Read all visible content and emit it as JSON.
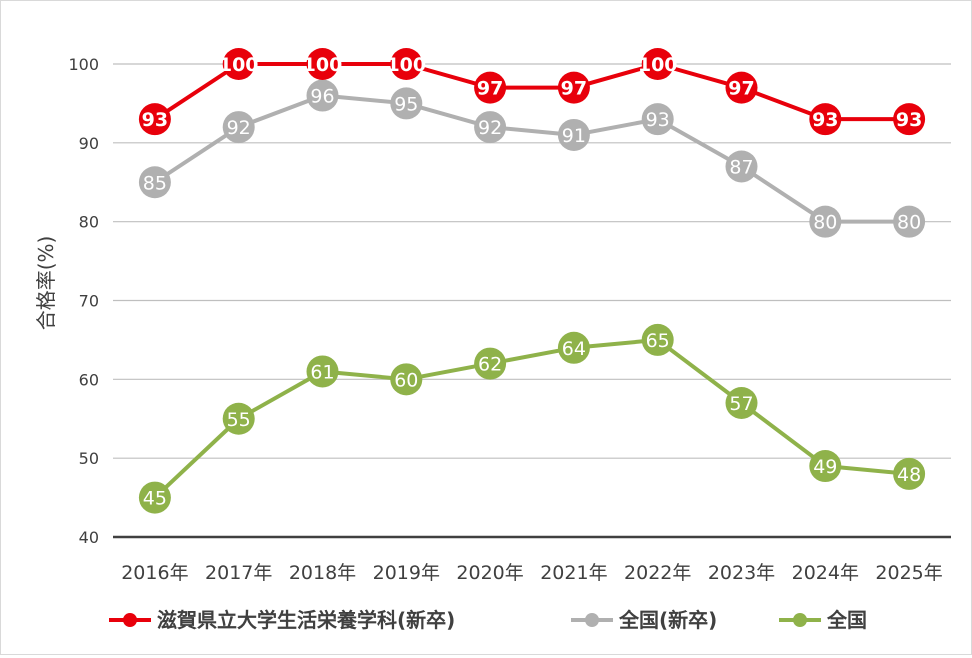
{
  "chart_data": {
    "type": "line",
    "title": "",
    "xlabel": "",
    "ylabel": "合格率(%)",
    "ylim": [
      40,
      100
    ],
    "yticks": [
      40,
      50,
      60,
      70,
      80,
      90,
      100
    ],
    "grid": true,
    "legend_position": "bottom",
    "categories": [
      "2016年",
      "2017年",
      "2018年",
      "2019年",
      "2020年",
      "2021年",
      "2022年",
      "2023年",
      "2024年",
      "2025年"
    ],
    "series": [
      {
        "name": "滋賀県立大学生活栄養学科(新卒)",
        "color": "#e8000b",
        "values": [
          93,
          100,
          100,
          100,
          97,
          97,
          100,
          97,
          93,
          93
        ]
      },
      {
        "name": "全国(新卒)",
        "color": "#b0b0b0",
        "values": [
          85,
          92,
          96,
          95,
          92,
          91,
          93,
          87,
          80,
          80
        ]
      },
      {
        "name": "全国",
        "color": "#8fb24a",
        "values": [
          45,
          55,
          61,
          60,
          62,
          64,
          65,
          57,
          49,
          48
        ]
      }
    ]
  }
}
